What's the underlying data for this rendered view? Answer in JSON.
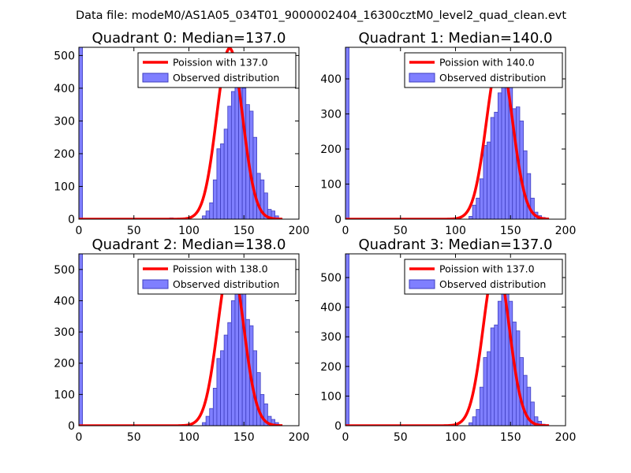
{
  "figure_title": "Data file: modeM0/AS1A05_034T01_9000002404_16300cztM0_level2_quad_clean.evt",
  "colors": {
    "bar_fill": "#7f7fff",
    "bar_edge": "#3f3fbf",
    "curve": "#ff0000",
    "axes": "#000000"
  },
  "chart_data": [
    {
      "type": "bar",
      "title": "Quadrant 0: Median=137.0",
      "xlim": [
        0,
        200
      ],
      "ylim": [
        0,
        525
      ],
      "xticks": [
        "0",
        "50",
        "100",
        "150",
        "200"
      ],
      "yticks": [
        0,
        100,
        200,
        300,
        400,
        500
      ],
      "legend_position": "top-right",
      "legend": [
        "Poission with 137.0",
        "Observed distribution"
      ],
      "curve": {
        "name": "Poission with 137.0",
        "mean": 137.0,
        "peak": 522
      },
      "hist": {
        "bin_start": 0,
        "bin_width": 3.3,
        "values": [
          525,
          0,
          0,
          0,
          0,
          0,
          0,
          0,
          0,
          0,
          0,
          0,
          0,
          0,
          0,
          0,
          0,
          0,
          0,
          0,
          0,
          0,
          0,
          0,
          1,
          4,
          0,
          0,
          0,
          0,
          0,
          0,
          0,
          0,
          10,
          25,
          50,
          120,
          215,
          230,
          275,
          345,
          390,
          430,
          445,
          400,
          350,
          330,
          250,
          140,
          120,
          80,
          30,
          25,
          10,
          0
        ]
      }
    },
    {
      "type": "bar",
      "title": "Quadrant 1: Median=140.0",
      "xlim": [
        0,
        200
      ],
      "ylim": [
        0,
        490
      ],
      "xticks": [
        "0",
        "50",
        "100",
        "150",
        "200"
      ],
      "yticks": [
        0,
        100,
        200,
        300,
        400
      ],
      "legend_position": "top-right",
      "legend": [
        "Poission with 140.0",
        "Observed distribution"
      ],
      "curve": {
        "name": "Poission with 140.0",
        "mean": 140.0,
        "peak": 462
      },
      "hist": {
        "bin_start": 0,
        "bin_width": 3.3,
        "values": [
          490,
          0,
          0,
          0,
          0,
          0,
          0,
          0,
          0,
          0,
          0,
          0,
          0,
          0,
          0,
          0,
          0,
          0,
          0,
          0,
          0,
          0,
          0,
          0,
          0,
          0,
          0,
          0,
          0,
          0,
          0,
          0,
          0,
          0,
          8,
          40,
          60,
          115,
          210,
          220,
          290,
          305,
          360,
          410,
          380,
          400,
          315,
          320,
          280,
          195,
          130,
          60,
          20,
          10,
          5,
          0
        ]
      }
    },
    {
      "type": "bar",
      "title": "Quadrant 2: Median=138.0",
      "xlim": [
        0,
        200
      ],
      "ylim": [
        0,
        550
      ],
      "xticks": [
        "0",
        "50",
        "100",
        "150",
        "200"
      ],
      "yticks": [
        0,
        100,
        200,
        300,
        400,
        500
      ],
      "legend_position": "top-right",
      "legend": [
        "Poission with 138.0",
        "Observed distribution"
      ],
      "curve": {
        "name": "Poission with 138.0",
        "mean": 138.0,
        "peak": 528
      },
      "hist": {
        "bin_start": 0,
        "bin_width": 3.3,
        "values": [
          550,
          0,
          0,
          0,
          0,
          0,
          0,
          0,
          0,
          0,
          0,
          0,
          0,
          0,
          0,
          0,
          0,
          0,
          0,
          0,
          0,
          0,
          0,
          0,
          2,
          0,
          0,
          0,
          0,
          0,
          0,
          0,
          0,
          0,
          10,
          30,
          55,
          120,
          215,
          240,
          290,
          330,
          400,
          440,
          470,
          450,
          340,
          320,
          240,
          170,
          100,
          70,
          30,
          20,
          10,
          0
        ]
      }
    },
    {
      "type": "bar",
      "title": "Quadrant 3: Median=137.0",
      "xlim": [
        0,
        200
      ],
      "ylim": [
        0,
        580
      ],
      "xticks": [
        "0",
        "50",
        "100",
        "150",
        "200"
      ],
      "yticks": [
        0,
        100,
        200,
        300,
        400,
        500
      ],
      "legend_position": "top-right",
      "legend": [
        "Poission with 137.0",
        "Observed distribution"
      ],
      "curve": {
        "name": "Poission with 137.0",
        "mean": 137.0,
        "peak": 555
      },
      "hist": {
        "bin_start": 0,
        "bin_width": 3.3,
        "values": [
          580,
          0,
          0,
          0,
          0,
          0,
          0,
          0,
          0,
          0,
          0,
          0,
          0,
          0,
          0,
          0,
          0,
          0,
          0,
          0,
          0,
          0,
          0,
          0,
          0,
          0,
          0,
          0,
          0,
          0,
          0,
          0,
          0,
          0,
          10,
          30,
          55,
          130,
          230,
          250,
          330,
          340,
          420,
          480,
          460,
          420,
          350,
          320,
          230,
          170,
          130,
          80,
          30,
          15,
          5,
          0
        ]
      }
    }
  ]
}
